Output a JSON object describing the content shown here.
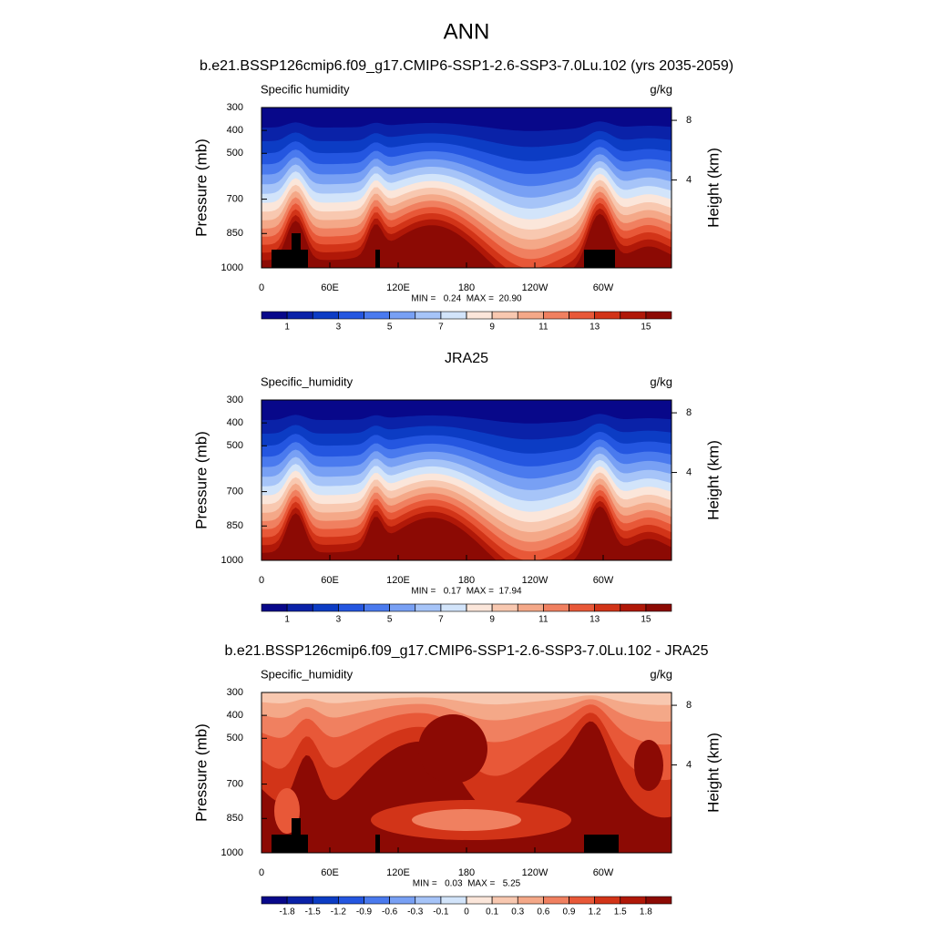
{
  "title": "ANN",
  "chart_data": [
    {
      "type": "contour",
      "title": "b.e21.BSSP126cmip6.f09_g17.CMIP6-SSP1-2.6-SSP3-7.0Lu.102 (yrs 2035-2059)",
      "left_label": "Specific humidity",
      "right_label": "g/kg",
      "ylabel": "Pressure (mb)",
      "y2label": "Height (km)",
      "xlim": [
        0,
        360
      ],
      "xticks": [
        0,
        {
          "value": 60,
          "label": "60E"
        },
        {
          "value": 120,
          "label": "120E"
        },
        180,
        {
          "value": 240,
          "label": "120W"
        },
        {
          "value": 300,
          "label": "60W"
        }
      ],
      "ylim": [
        1000,
        300
      ],
      "yticks": [
        300,
        400,
        500,
        700,
        850,
        1000
      ],
      "y2lim": [
        0.1,
        9.2
      ],
      "y2ticks": [
        4,
        8
      ],
      "stats": "MIN =   0.24  MAX =  20.90",
      "colorbar": {
        "levels": [
          1,
          2,
          3,
          4,
          5,
          6,
          7,
          8,
          9,
          10,
          11,
          12,
          13,
          14,
          15
        ],
        "ticks": [
          1,
          3,
          5,
          7,
          9,
          11,
          13,
          15
        ],
        "colors": [
          "#08088a",
          "#0a22a8",
          "#0c3cc4",
          "#2456e0",
          "#4a7aee",
          "#78a0f4",
          "#a6c4f8",
          "#d2e4fa",
          "#fbe6da",
          "#f8c8b0",
          "#f4a888",
          "#f08060",
          "#e85838",
          "#d23418",
          "#b01808",
          "#8c0a04"
        ]
      }
    },
    {
      "type": "contour",
      "title": "JRA25",
      "left_label": "Specific_humidity",
      "right_label": "g/kg",
      "ylabel": "Pressure (mb)",
      "y2label": "Height (km)",
      "xlim": [
        0,
        360
      ],
      "xticks": [
        0,
        {
          "value": 60,
          "label": "60E"
        },
        {
          "value": 120,
          "label": "120E"
        },
        180,
        {
          "value": 240,
          "label": "120W"
        },
        {
          "value": 300,
          "label": "60W"
        }
      ],
      "ylim": [
        1000,
        300
      ],
      "yticks": [
        300,
        400,
        500,
        700,
        850,
        1000
      ],
      "y2lim": [
        0.1,
        9.2
      ],
      "y2ticks": [
        4,
        8
      ],
      "stats": "MIN =   0.17  MAX =  17.94",
      "colorbar": {
        "levels": [
          1,
          2,
          3,
          4,
          5,
          6,
          7,
          8,
          9,
          10,
          11,
          12,
          13,
          14,
          15
        ],
        "ticks": [
          1,
          3,
          5,
          7,
          9,
          11,
          13,
          15
        ],
        "colors": [
          "#08088a",
          "#0a22a8",
          "#0c3cc4",
          "#2456e0",
          "#4a7aee",
          "#78a0f4",
          "#a6c4f8",
          "#d2e4fa",
          "#fbe6da",
          "#f8c8b0",
          "#f4a888",
          "#f08060",
          "#e85838",
          "#d23418",
          "#b01808",
          "#8c0a04"
        ]
      }
    },
    {
      "type": "contour",
      "title": "b.e21.BSSP126cmip6.f09_g17.CMIP6-SSP1-2.6-SSP3-7.0Lu.102 - JRA25",
      "left_label": "Specific_humidity",
      "right_label": "g/kg",
      "ylabel": "Pressure (mb)",
      "y2label": "Height (km)",
      "xlim": [
        0,
        360
      ],
      "xticks": [
        0,
        {
          "value": 60,
          "label": "60E"
        },
        {
          "value": 120,
          "label": "120E"
        },
        180,
        {
          "value": 240,
          "label": "120W"
        },
        {
          "value": 300,
          "label": "60W"
        }
      ],
      "ylim": [
        1000,
        300
      ],
      "yticks": [
        300,
        400,
        500,
        700,
        850,
        1000
      ],
      "y2lim": [
        0.1,
        9.2
      ],
      "y2ticks": [
        4,
        8
      ],
      "stats": "MIN =   0.03  MAX =   5.25",
      "colorbar": {
        "levels": [
          -1.8,
          -1.5,
          -1.2,
          -0.9,
          -0.6,
          -0.3,
          -0.1,
          0,
          0.1,
          0.3,
          0.6,
          0.9,
          1.2,
          1.5,
          1.8
        ],
        "ticks": [
          -1.8,
          -1.5,
          -1.2,
          -0.9,
          -0.6,
          -0.3,
          -0.1,
          0,
          0.1,
          0.3,
          0.6,
          0.9,
          1.2,
          1.5,
          1.8
        ],
        "colors": [
          "#08088a",
          "#0a22a8",
          "#0c3cc4",
          "#2456e0",
          "#4a7aee",
          "#78a0f4",
          "#a6c4f8",
          "#d2e4fa",
          "#fbe6da",
          "#f8c8b0",
          "#f4a888",
          "#f08060",
          "#e85838",
          "#d23418",
          "#b01808",
          "#8c0a04"
        ]
      }
    }
  ]
}
